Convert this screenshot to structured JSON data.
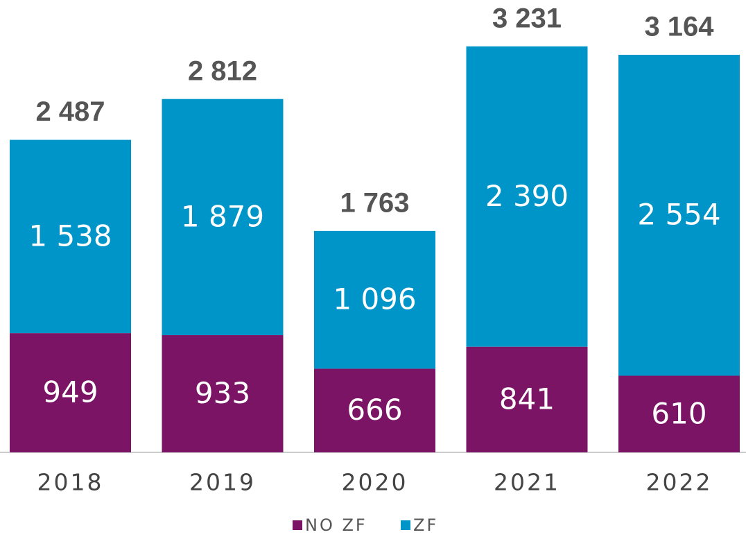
{
  "chart_data": {
    "type": "stacked_bar",
    "categories": [
      "2018",
      "2019",
      "2020",
      "2021",
      "2022"
    ],
    "series": [
      {
        "name": "NO ZF",
        "color": "#7b1464",
        "values": [
          949,
          933,
          666,
          841,
          610
        ],
        "value_labels": [
          "949",
          "933",
          "666",
          "841",
          "610"
        ]
      },
      {
        "name": "ZF",
        "color": "#0095c8",
        "values": [
          1538,
          1879,
          1096,
          2390,
          2554
        ],
        "value_labels": [
          "1 538",
          "1 879",
          "1 096",
          "2 390",
          "2 554"
        ]
      }
    ],
    "totals": [
      2487,
      2812,
      1763,
      3231,
      3164
    ],
    "total_labels": [
      "2 487",
      "2 812",
      "1 763",
      "3 231",
      "3 164"
    ],
    "ylim": [
      0,
      3600
    ],
    "legend": "bottom"
  }
}
